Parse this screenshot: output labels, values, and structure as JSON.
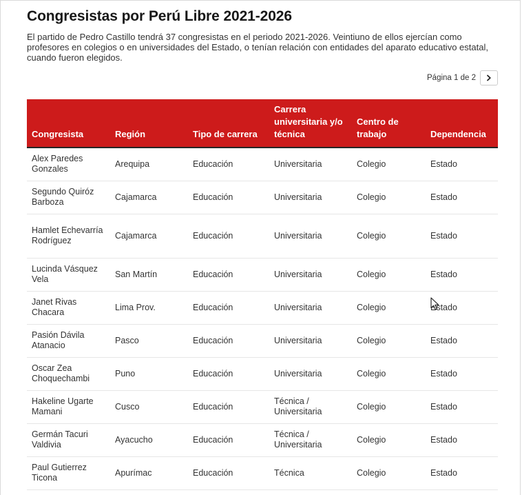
{
  "header": {
    "title": "Congresistas por Perú Libre 2021-2026",
    "description": "El partido de Pedro Castillo tendrá 37 congresistas en el periodo 2021-2026. Veintiuno de ellos ejercían como profesores en colegios o en universidades del Estado, o tenían relación con entidades del aparato educativo estatal, cuando fueron elegidos."
  },
  "pagination": {
    "label": "Página 1 de 2",
    "next_icon": "chevron-right-icon"
  },
  "table": {
    "columns": [
      "Congresista",
      "Región",
      "Tipo de carrera",
      "Carrera universitaria y/o técnica",
      "Centro de trabajo",
      "Dependencia"
    ],
    "rows": [
      [
        "Alex Paredes Gonzales",
        "Arequipa",
        "Educación",
        "Universitaria",
        "Colegio",
        "Estado"
      ],
      [
        "Segundo Quiróz Barboza",
        "Cajamarca",
        "Educación",
        "Universitaria",
        "Colegio",
        "Estado"
      ],
      [
        "Hamlet Echevarría Rodríguez",
        "Cajamarca",
        "Educación",
        "Universitaria",
        "Colegio",
        "Estado"
      ],
      [
        "Lucinda Vásquez Vela",
        "San Martín",
        "Educación",
        "Universitaria",
        "Colegio",
        "Estado"
      ],
      [
        "Janet Rivas Chacara",
        "Lima Prov.",
        "Educación",
        "Universitaria",
        "Colegio",
        "Estado"
      ],
      [
        "Pasión Dávila Atanacio",
        "Pasco",
        "Educación",
        "Universitaria",
        "Colegio",
        "Estado"
      ],
      [
        "Oscar Zea Choquechambi",
        "Puno",
        "Educación",
        "Universitaria",
        "Colegio",
        "Estado"
      ],
      [
        "Hakeline Ugarte Mamani",
        "Cusco",
        "Educación",
        "Técnica / Universitaria",
        "Colegio",
        "Estado"
      ],
      [
        "Germán Tacuri Valdivia",
        "Ayacucho",
        "Educación",
        "Técnica / Universitaria",
        "Colegio",
        "Estado"
      ],
      [
        "Paul Gutierrez Ticona",
        "Apurímac",
        "Educación",
        "Técnica",
        "Colegio",
        "Estado"
      ]
    ]
  },
  "colors": {
    "header_bg": "#cd1b1b",
    "header_text": "#ffffff",
    "title_text": "#181818",
    "body_text": "#333333"
  }
}
